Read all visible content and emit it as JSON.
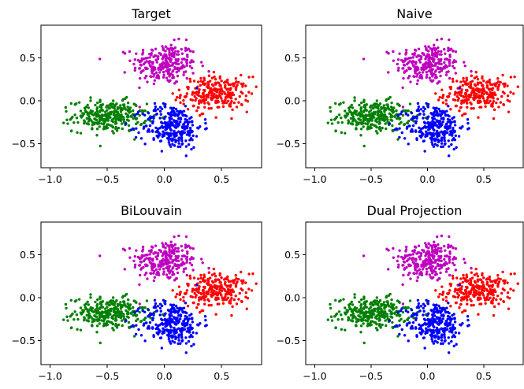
{
  "chart_data": [
    {
      "type": "scatter",
      "title": "Target",
      "xlim": [
        -1.08,
        0.85
      ],
      "ylim": [
        -0.78,
        0.88
      ],
      "x_ticks": [
        -1.0,
        -0.5,
        0.0,
        0.5
      ],
      "x_tick_labels": [
        "−1.0",
        "−0.5",
        "0.0",
        "0.5"
      ],
      "y_ticks": [
        -0.5,
        0.0,
        0.5
      ],
      "y_tick_labels": [
        "−0.5",
        "0.0",
        "0.5"
      ],
      "grid": false,
      "series": [
        {
          "color": "#bf00bf",
          "center": [
            0.0,
            0.43
          ],
          "spread": [
            0.14,
            0.12
          ],
          "n": 260
        },
        {
          "color": "#ff0000",
          "center": [
            0.45,
            0.08
          ],
          "spread": [
            0.15,
            0.1
          ],
          "n": 260
        },
        {
          "color": "#008000",
          "center": [
            -0.48,
            -0.18
          ],
          "spread": [
            0.16,
            0.09
          ],
          "n": 300
        },
        {
          "color": "#0000ff",
          "center": [
            0.07,
            -0.3
          ],
          "spread": [
            0.13,
            0.13
          ],
          "n": 280
        }
      ]
    },
    {
      "type": "scatter",
      "title": "Naive",
      "xlim": [
        -1.08,
        0.85
      ],
      "ylim": [
        -0.78,
        0.88
      ],
      "x_ticks": [
        -1.0,
        -0.5,
        0.0,
        0.5
      ],
      "x_tick_labels": [
        "−1.0",
        "−0.5",
        "0.0",
        "0.5"
      ],
      "y_ticks": [
        -0.5,
        0.0,
        0.5
      ],
      "y_tick_labels": [
        "−0.5",
        "0.0",
        "0.5"
      ],
      "grid": false,
      "series": [
        {
          "color": "#bf00bf",
          "center": [
            0.0,
            0.43
          ],
          "spread": [
            0.14,
            0.12
          ],
          "n": 260
        },
        {
          "color": "#ff0000",
          "center": [
            0.45,
            0.08
          ],
          "spread": [
            0.15,
            0.1
          ],
          "n": 260
        },
        {
          "color": "#008000",
          "center": [
            -0.48,
            -0.18
          ],
          "spread": [
            0.16,
            0.09
          ],
          "n": 300
        },
        {
          "color": "#0000ff",
          "center": [
            0.07,
            -0.3
          ],
          "spread": [
            0.13,
            0.13
          ],
          "n": 280
        }
      ]
    },
    {
      "type": "scatter",
      "title": "BiLouvain",
      "xlim": [
        -1.08,
        0.85
      ],
      "ylim": [
        -0.78,
        0.88
      ],
      "x_ticks": [
        -1.0,
        -0.5,
        0.0,
        0.5
      ],
      "x_tick_labels": [
        "−1.0",
        "−0.5",
        "0.0",
        "0.5"
      ],
      "y_ticks": [
        -0.5,
        0.0,
        0.5
      ],
      "y_tick_labels": [
        "−0.5",
        "0.0",
        "0.5"
      ],
      "grid": false,
      "series": [
        {
          "color": "#bf00bf",
          "center": [
            0.0,
            0.43
          ],
          "spread": [
            0.14,
            0.12
          ],
          "n": 260
        },
        {
          "color": "#ff0000",
          "center": [
            0.45,
            0.08
          ],
          "spread": [
            0.15,
            0.1
          ],
          "n": 260
        },
        {
          "color": "#008000",
          "center": [
            -0.48,
            -0.18
          ],
          "spread": [
            0.16,
            0.09
          ],
          "n": 300
        },
        {
          "color": "#0000ff",
          "center": [
            0.07,
            -0.3
          ],
          "spread": [
            0.13,
            0.13
          ],
          "n": 280
        }
      ]
    },
    {
      "type": "scatter",
      "title": "Dual Projection",
      "xlim": [
        -1.08,
        0.85
      ],
      "ylim": [
        -0.78,
        0.88
      ],
      "x_ticks": [
        -1.0,
        -0.5,
        0.0,
        0.5
      ],
      "x_tick_labels": [
        "−1.0",
        "−0.5",
        "0.0",
        "0.5"
      ],
      "y_ticks": [
        -0.5,
        0.0,
        0.5
      ],
      "y_tick_labels": [
        "−0.5",
        "0.0",
        "0.5"
      ],
      "grid": false,
      "series": [
        {
          "color": "#bf00bf",
          "center": [
            0.0,
            0.43
          ],
          "spread": [
            0.14,
            0.12
          ],
          "n": 260
        },
        {
          "color": "#ff0000",
          "center": [
            0.45,
            0.08
          ],
          "spread": [
            0.15,
            0.1
          ],
          "n": 260
        },
        {
          "color": "#008000",
          "center": [
            -0.48,
            -0.18
          ],
          "spread": [
            0.16,
            0.09
          ],
          "n": 300
        },
        {
          "color": "#0000ff",
          "center": [
            0.07,
            -0.3
          ],
          "spread": [
            0.13,
            0.13
          ],
          "n": 280
        }
      ]
    }
  ]
}
